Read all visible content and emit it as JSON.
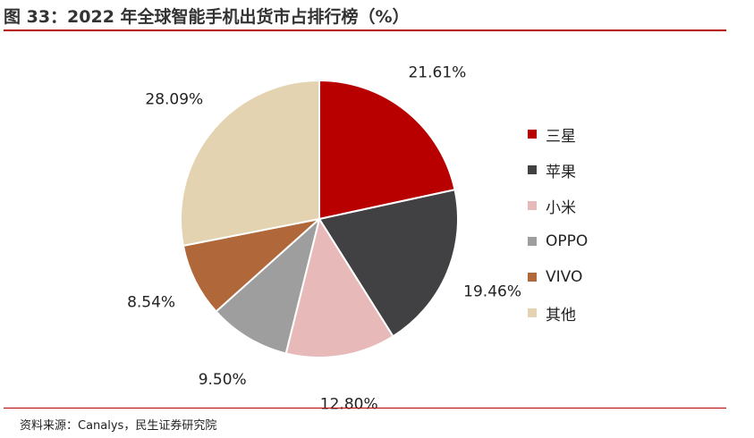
{
  "header": {
    "title": "图 33：2022 年全球智能手机出货市占排行榜（%）"
  },
  "footer": {
    "source": "资料来源：Canalys，民生证券研究院"
  },
  "chart_data": {
    "type": "pie",
    "title": "2022 年全球智能手机出货市占排行榜（%）",
    "legend_position": "right",
    "slices": [
      {
        "name": "三星",
        "value": 21.61,
        "label": "21.61%",
        "color": "#b80000"
      },
      {
        "name": "苹果",
        "value": 19.46,
        "label": "19.46%",
        "color": "#414143"
      },
      {
        "name": "小米",
        "value": 12.8,
        "label": "12.80%",
        "color": "#e8b9b9"
      },
      {
        "name": "OPPO",
        "value": 9.5,
        "label": "9.50%",
        "color": "#9e9e9e"
      },
      {
        "name": "VIVO",
        "value": 8.54,
        "label": "8.54%",
        "color": "#b0683a"
      },
      {
        "name": "其他",
        "value": 28.09,
        "label": "28.09%",
        "color": "#e3d3b0"
      }
    ]
  }
}
